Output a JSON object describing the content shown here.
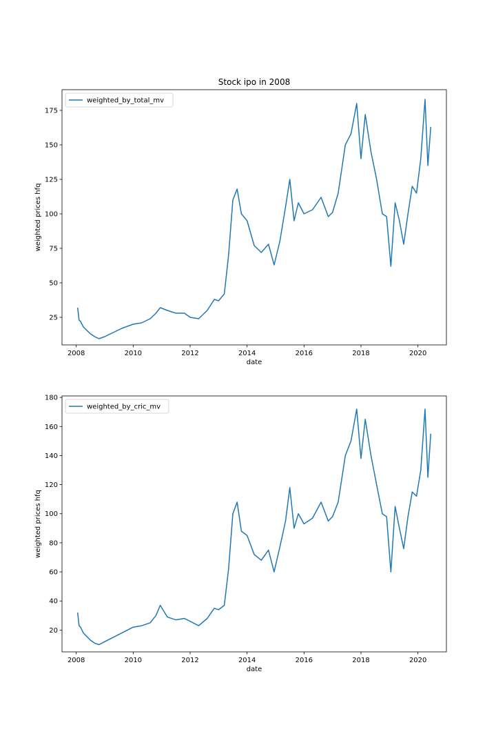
{
  "figure": {
    "title": "Stock ipo in 2008"
  },
  "chart_data": [
    {
      "type": "line",
      "title": "Stock ipo in 2008",
      "xlabel": "date",
      "ylabel": "weighted prices hfq",
      "xlim": [
        2007.5,
        2021.0
      ],
      "ylim": [
        5,
        190
      ],
      "xticks": [
        2008,
        2010,
        2012,
        2014,
        2016,
        2018,
        2020
      ],
      "xtick_labels": [
        "2008",
        "2010",
        "2012",
        "2014",
        "2016",
        "2018",
        "2020"
      ],
      "yticks": [
        25,
        50,
        75,
        100,
        125,
        150,
        175
      ],
      "ytick_labels": [
        "25",
        "50",
        "75",
        "100",
        "125",
        "150",
        "175"
      ],
      "legend_position": "upper-left",
      "grid": false,
      "series": [
        {
          "name": "weighted_by_total_mv",
          "color": "#1f77b4",
          "x": [
            2008.05,
            2008.1,
            2008.15,
            2008.25,
            2008.35,
            2008.5,
            2008.65,
            2008.8,
            2009.0,
            2009.3,
            2009.6,
            2010.0,
            2010.3,
            2010.6,
            2010.8,
            2010.95,
            2011.2,
            2011.5,
            2011.8,
            2012.0,
            2012.3,
            2012.6,
            2012.85,
            2013.0,
            2013.2,
            2013.35,
            2013.5,
            2013.65,
            2013.8,
            2014.0,
            2014.25,
            2014.5,
            2014.75,
            2014.95,
            2015.15,
            2015.35,
            2015.5,
            2015.65,
            2015.8,
            2016.0,
            2016.3,
            2016.6,
            2016.85,
            2017.0,
            2017.2,
            2017.45,
            2017.65,
            2017.85,
            2018.0,
            2018.15,
            2018.35,
            2018.55,
            2018.75,
            2018.9,
            2019.05,
            2019.2,
            2019.35,
            2019.5,
            2019.65,
            2019.8,
            2019.95,
            2020.1,
            2020.25,
            2020.35,
            2020.45
          ],
          "values": [
            32,
            23,
            22,
            18,
            16,
            13,
            11,
            9.5,
            11,
            14,
            17,
            20,
            21,
            24,
            28,
            32,
            30,
            28,
            28,
            25,
            24,
            30,
            38,
            37,
            42,
            70,
            110,
            118,
            100,
            95,
            77,
            72,
            78,
            63,
            80,
            105,
            125,
            95,
            108,
            100,
            103,
            112,
            98,
            101,
            115,
            150,
            158,
            180,
            140,
            172,
            145,
            125,
            100,
            98,
            62,
            108,
            95,
            78,
            100,
            120,
            115,
            140,
            183,
            135,
            163
          ]
        }
      ]
    },
    {
      "type": "line",
      "title": "",
      "xlabel": "date",
      "ylabel": "weighted prices hfq",
      "xlim": [
        2007.5,
        2021.0
      ],
      "ylim": [
        5,
        181
      ],
      "xticks": [
        2008,
        2010,
        2012,
        2014,
        2016,
        2018,
        2020
      ],
      "xtick_labels": [
        "2008",
        "2010",
        "2012",
        "2014",
        "2016",
        "2018",
        "2020"
      ],
      "yticks": [
        20,
        40,
        60,
        80,
        100,
        120,
        140,
        160,
        180
      ],
      "ytick_labels": [
        "20",
        "40",
        "60",
        "80",
        "100",
        "120",
        "140",
        "160",
        "180"
      ],
      "legend_position": "upper-left",
      "grid": false,
      "series": [
        {
          "name": "weighted_by_cric_mv",
          "color": "#1f77b4",
          "x": [
            2008.05,
            2008.1,
            2008.15,
            2008.25,
            2008.35,
            2008.5,
            2008.65,
            2008.8,
            2009.0,
            2009.3,
            2009.6,
            2010.0,
            2010.3,
            2010.6,
            2010.8,
            2010.95,
            2011.2,
            2011.5,
            2011.8,
            2012.0,
            2012.3,
            2012.6,
            2012.85,
            2013.0,
            2013.2,
            2013.35,
            2013.5,
            2013.65,
            2013.8,
            2014.0,
            2014.25,
            2014.5,
            2014.75,
            2014.95,
            2015.15,
            2015.35,
            2015.5,
            2015.65,
            2015.8,
            2016.0,
            2016.3,
            2016.6,
            2016.85,
            2017.0,
            2017.2,
            2017.45,
            2017.65,
            2017.85,
            2018.0,
            2018.15,
            2018.35,
            2018.55,
            2018.75,
            2018.9,
            2019.05,
            2019.2,
            2019.35,
            2019.5,
            2019.65,
            2019.8,
            2019.95,
            2020.1,
            2020.25,
            2020.35,
            2020.45
          ],
          "values": [
            32,
            23,
            22,
            18,
            16,
            13,
            11,
            10,
            12,
            15,
            18,
            22,
            23,
            25,
            30,
            37,
            29,
            27,
            28,
            26,
            23,
            28,
            35,
            34,
            37,
            62,
            100,
            108,
            88,
            85,
            72,
            68,
            75,
            60,
            77,
            95,
            118,
            90,
            100,
            93,
            97,
            108,
            95,
            98,
            108,
            140,
            150,
            172,
            138,
            165,
            140,
            120,
            100,
            98,
            60,
            105,
            90,
            76,
            98,
            115,
            112,
            130,
            172,
            125,
            155
          ]
        }
      ]
    }
  ]
}
